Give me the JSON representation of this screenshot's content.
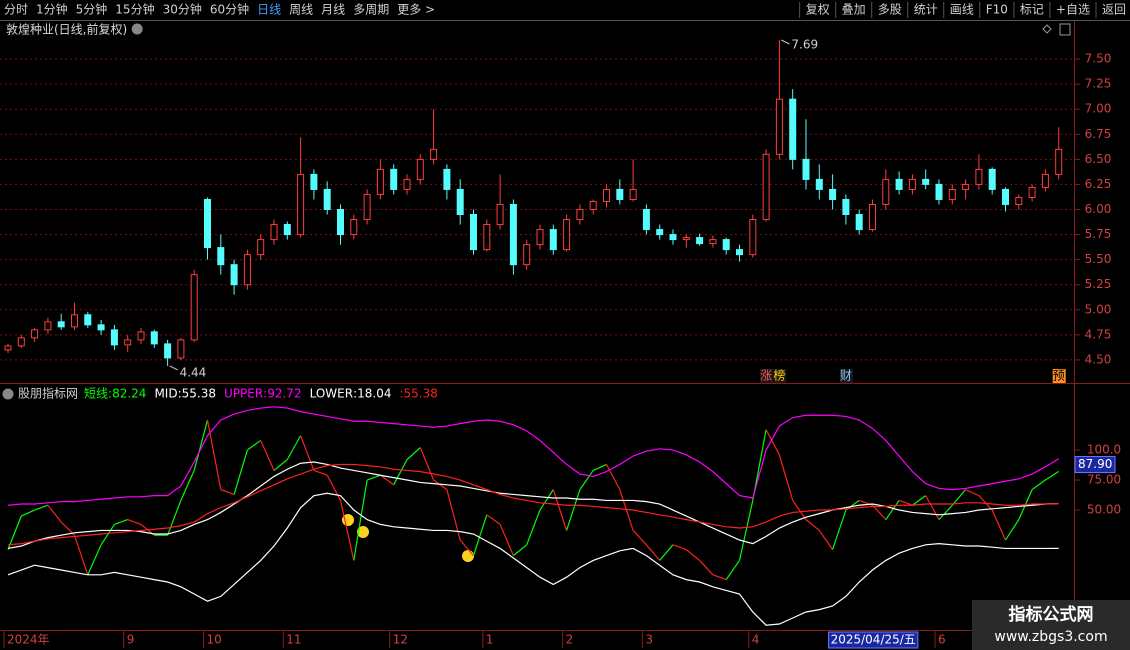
{
  "toolbar": {
    "periods": [
      "分时",
      "1分钟",
      "5分钟",
      "15分钟",
      "30分钟",
      "60分钟",
      "日线",
      "周线",
      "月线",
      "多周期",
      "更多 >"
    ],
    "active_index": 6,
    "buttons": [
      "复权",
      "叠加",
      "多股",
      "统计",
      "画线",
      "F10",
      "标记",
      "+自选",
      "返回"
    ]
  },
  "watermark": {
    "title": "指标公式网",
    "url": "www.zbgs3.com"
  },
  "chart_data": [
    {
      "type": "candlestick",
      "title": "敦煌种业(日线,前复权)",
      "categories": [
        "2024年",
        null,
        null,
        null,
        null,
        null,
        null,
        null,
        null,
        "9",
        null,
        null,
        null,
        null,
        null,
        "10",
        null,
        null,
        null,
        null,
        null,
        "11",
        null,
        null,
        null,
        null,
        null,
        null,
        null,
        "12",
        null,
        null,
        null,
        null,
        null,
        null,
        "1",
        null,
        null,
        null,
        null,
        null,
        "2",
        null,
        null,
        null,
        null,
        null,
        "3",
        null,
        null,
        null,
        null,
        null,
        null,
        null,
        "4",
        null,
        null,
        null,
        null,
        null,
        "2025/04/25/五",
        null,
        null,
        null,
        null,
        null,
        null,
        null,
        "6",
        null,
        null,
        null,
        null,
        null,
        null,
        null,
        null,
        null
      ],
      "cursor_index": 62,
      "ohlc": [
        [
          4.6,
          4.66,
          4.57,
          4.64
        ],
        [
          4.64,
          4.75,
          4.62,
          4.72
        ],
        [
          4.72,
          4.82,
          4.68,
          4.8
        ],
        [
          4.8,
          4.92,
          4.76,
          4.88
        ],
        [
          4.88,
          4.96,
          4.8,
          4.83
        ],
        [
          4.83,
          5.07,
          4.8,
          4.95
        ],
        [
          4.95,
          4.98,
          4.82,
          4.85
        ],
        [
          4.85,
          4.9,
          4.75,
          4.8
        ],
        [
          4.8,
          4.85,
          4.6,
          4.65
        ],
        [
          4.65,
          4.75,
          4.58,
          4.7
        ],
        [
          4.7,
          4.82,
          4.66,
          4.78
        ],
        [
          4.78,
          4.8,
          4.62,
          4.66
        ],
        [
          4.66,
          4.7,
          4.44,
          4.52
        ],
        [
          4.52,
          4.72,
          4.5,
          4.7
        ],
        [
          4.7,
          5.4,
          4.68,
          5.35
        ],
        [
          6.1,
          6.12,
          5.5,
          5.62
        ],
        [
          5.62,
          5.75,
          5.35,
          5.45
        ],
        [
          5.45,
          5.5,
          5.15,
          5.25
        ],
        [
          5.25,
          5.6,
          5.2,
          5.55
        ],
        [
          5.55,
          5.75,
          5.5,
          5.7
        ],
        [
          5.7,
          5.9,
          5.65,
          5.85
        ],
        [
          5.85,
          5.88,
          5.7,
          5.75
        ],
        [
          5.75,
          6.72,
          5.72,
          6.35
        ],
        [
          6.35,
          6.4,
          6.1,
          6.2
        ],
        [
          6.2,
          6.28,
          5.95,
          6.0
        ],
        [
          6.0,
          6.05,
          5.65,
          5.75
        ],
        [
          5.75,
          5.95,
          5.7,
          5.9
        ],
        [
          5.9,
          6.2,
          5.85,
          6.15
        ],
        [
          6.15,
          6.5,
          6.1,
          6.4
        ],
        [
          6.4,
          6.45,
          6.15,
          6.2
        ],
        [
          6.2,
          6.35,
          6.15,
          6.3
        ],
        [
          6.3,
          6.55,
          6.25,
          6.5
        ],
        [
          6.5,
          7.0,
          6.45,
          6.6
        ],
        [
          6.4,
          6.45,
          6.1,
          6.2
        ],
        [
          6.2,
          6.3,
          5.85,
          5.95
        ],
        [
          5.95,
          6.0,
          5.55,
          5.6
        ],
        [
          5.6,
          5.9,
          5.58,
          5.85
        ],
        [
          5.85,
          6.35,
          5.8,
          6.05
        ],
        [
          6.05,
          6.1,
          5.35,
          5.45
        ],
        [
          5.45,
          5.7,
          5.4,
          5.65
        ],
        [
          5.65,
          5.85,
          5.6,
          5.8
        ],
        [
          5.8,
          5.85,
          5.55,
          5.6
        ],
        [
          5.6,
          5.95,
          5.58,
          5.9
        ],
        [
          5.9,
          6.05,
          5.85,
          6.0
        ],
        [
          6.0,
          6.1,
          5.95,
          6.08
        ],
        [
          6.08,
          6.25,
          6.02,
          6.2
        ],
        [
          6.2,
          6.3,
          6.05,
          6.1
        ],
        [
          6.1,
          6.5,
          6.08,
          6.2
        ],
        [
          6.0,
          6.05,
          5.75,
          5.8
        ],
        [
          5.8,
          5.85,
          5.7,
          5.75
        ],
        [
          5.75,
          5.8,
          5.65,
          5.7
        ],
        [
          5.7,
          5.75,
          5.62,
          5.72
        ],
        [
          5.72,
          5.76,
          5.64,
          5.66
        ],
        [
          5.66,
          5.74,
          5.62,
          5.7
        ],
        [
          5.7,
          5.72,
          5.55,
          5.6
        ],
        [
          5.6,
          5.65,
          5.48,
          5.55
        ],
        [
          5.55,
          5.95,
          5.52,
          5.9
        ],
        [
          5.9,
          6.6,
          5.88,
          6.55
        ],
        [
          6.55,
          7.69,
          6.5,
          7.1
        ],
        [
          7.1,
          7.2,
          6.4,
          6.5
        ],
        [
          6.5,
          6.9,
          6.2,
          6.3
        ],
        [
          6.3,
          6.45,
          6.1,
          6.2
        ],
        [
          6.2,
          6.35,
          6.0,
          6.1
        ],
        [
          6.1,
          6.15,
          5.85,
          5.95
        ],
        [
          5.95,
          6.0,
          5.75,
          5.8
        ],
        [
          5.8,
          6.1,
          5.78,
          6.05
        ],
        [
          6.05,
          6.4,
          6.0,
          6.3
        ],
        [
          6.3,
          6.38,
          6.15,
          6.2
        ],
        [
          6.2,
          6.35,
          6.15,
          6.3
        ],
        [
          6.3,
          6.4,
          6.2,
          6.25
        ],
        [
          6.25,
          6.3,
          6.05,
          6.1
        ],
        [
          6.1,
          6.25,
          6.05,
          6.2
        ],
        [
          6.2,
          6.3,
          6.1,
          6.25
        ],
        [
          6.25,
          6.55,
          6.2,
          6.4
        ],
        [
          6.4,
          6.42,
          6.15,
          6.2
        ],
        [
          6.2,
          6.22,
          5.98,
          6.05
        ],
        [
          6.05,
          6.15,
          6.0,
          6.12
        ],
        [
          6.12,
          6.25,
          6.08,
          6.22
        ],
        [
          6.22,
          6.4,
          6.18,
          6.35
        ],
        [
          6.35,
          6.82,
          6.3,
          6.6
        ]
      ],
      "up_color": "#ff3c3c",
      "down_color": "#54fcfc",
      "ylim": [
        4.27,
        7.71
      ],
      "yticks": [
        {
          "value": 4.5,
          "label": "4.50"
        },
        4.75,
        {
          "value": 5,
          "label": "5.00"
        },
        5.25,
        {
          "value": 5.5,
          "label": "5.50"
        },
        5.75,
        {
          "value": 6,
          "label": "6.00"
        },
        6.25,
        {
          "value": 6.5,
          "label": "6.50"
        },
        6.75,
        {
          "value": 7,
          "label": "7.00"
        },
        7.25,
        {
          "value": 7.5,
          "label": "7.50"
        }
      ],
      "grid": true,
      "events": [
        {
          "label": "涨",
          "candle": 57,
          "color": "#ff5050"
        },
        {
          "label": "榜",
          "candle": 58,
          "color": "#ffcc00"
        },
        {
          "label": "财",
          "candle": 63,
          "color": "#80c8ff"
        },
        {
          "label": "预",
          "candle": 79,
          "color": "#ff9020"
        }
      ]
    },
    {
      "type": "line",
      "title": "股朋指标网",
      "ylim": [
        -50,
        141.7
      ],
      "yticks": [
        {
          "value": 50,
          "label": "50.00"
        },
        {
          "value": 75,
          "label": "75.00"
        },
        {
          "value": 100,
          "label": "100.0"
        }
      ],
      "current_value": {
        "value": 87.9,
        "label": "87.90"
      },
      "series": [
        {
          "name": "短线",
          "up_color": "#00ff00",
          "down_color": "#ff2020",
          "values": [
            17,
            45,
            50,
            54,
            40,
            29,
            -4,
            21,
            38,
            42,
            38,
            29,
            29,
            58,
            83,
            125,
            67,
            63,
            100,
            108,
            83,
            92,
            112,
            83,
            79,
            58,
            8,
            75,
            79,
            71,
            92,
            102,
            75,
            67,
            25,
            12,
            46,
            38,
            12,
            21,
            50,
            67,
            33,
            67,
            83,
            88,
            67,
            33,
            21,
            8,
            21,
            17,
            8,
            -4,
            -8,
            8,
            58,
            117,
            96,
            58,
            42,
            33,
            17,
            50,
            58,
            54,
            42,
            58,
            54,
            62,
            42,
            54,
            67,
            62,
            50,
            25,
            42,
            67,
            75,
            82.24
          ]
        },
        {
          "name": "MID",
          "color": "#ffffff",
          "values": [
            18,
            20,
            24,
            27,
            29,
            31,
            32,
            33,
            33,
            33,
            32,
            30,
            30,
            33,
            38,
            42,
            48,
            55,
            62,
            70,
            78,
            84,
            89,
            90,
            88,
            85,
            83,
            81,
            79,
            77,
            75,
            73,
            72,
            71,
            70,
            68,
            66,
            64,
            63,
            62,
            61,
            60,
            60,
            59,
            59,
            58,
            58,
            58,
            57,
            55,
            50,
            45,
            40,
            35,
            30,
            25,
            22,
            28,
            35,
            40,
            44,
            47,
            50,
            52,
            54,
            55,
            53,
            50,
            48,
            47,
            46,
            47,
            48,
            50,
            51,
            52,
            53,
            54,
            55,
            55.38
          ]
        },
        {
          "name": "UPPER",
          "color": "#ff00ff",
          "values": [
            54,
            55,
            55,
            56,
            57,
            57,
            58,
            59,
            60,
            61,
            61,
            62,
            62,
            70,
            90,
            112,
            125,
            130,
            133,
            135,
            136,
            135,
            132,
            130,
            128,
            126,
            124,
            124,
            123,
            122,
            121,
            120,
            119,
            120,
            122,
            124,
            125,
            124,
            121,
            116,
            108,
            98,
            88,
            80,
            78,
            82,
            88,
            95,
            99,
            101,
            100,
            96,
            90,
            82,
            72,
            62,
            60,
            100,
            120,
            127,
            129,
            129,
            129,
            128,
            125,
            118,
            108,
            95,
            82,
            72,
            68,
            67,
            68,
            70,
            72,
            74,
            76,
            80,
            86,
            92.72
          ]
        },
        {
          "name": "LOWER",
          "color": "#ffffff",
          "values": [
            -4,
            0,
            4,
            2,
            0,
            -2,
            -4,
            -4,
            -2,
            -4,
            -6,
            -8,
            -10,
            -14,
            -20,
            -26,
            -22,
            -12,
            -2,
            8,
            20,
            35,
            52,
            62,
            64,
            62,
            50,
            42,
            38,
            36,
            35,
            34,
            33,
            33,
            32,
            30,
            24,
            18,
            10,
            2,
            -6,
            -12,
            -6,
            2,
            8,
            12,
            16,
            18,
            12,
            4,
            -4,
            -8,
            -10,
            -14,
            -17,
            -20,
            -35,
            -46,
            -45,
            -40,
            -35,
            -33,
            -30,
            -22,
            -10,
            0,
            8,
            14,
            18,
            21,
            22,
            21,
            20,
            20,
            19,
            18,
            18,
            18,
            18,
            18.04
          ]
        },
        {
          "color": "#ff2020",
          "values": [
            21,
            22,
            24,
            26,
            27,
            28,
            29,
            30,
            31,
            32,
            33,
            34,
            35,
            37,
            40,
            47,
            52,
            56,
            61,
            66,
            71,
            76,
            80,
            84,
            87,
            88,
            88,
            87,
            86,
            84,
            83,
            82,
            80,
            78,
            75,
            71,
            67,
            63,
            60,
            58,
            56,
            55,
            54,
            54,
            53,
            52,
            51,
            50,
            48,
            46,
            44,
            42,
            40,
            38,
            36,
            35,
            36,
            40,
            45,
            48,
            49,
            50,
            50,
            51,
            52,
            53,
            53,
            54,
            54,
            55,
            55,
            55,
            56,
            56,
            55,
            54,
            54,
            55,
            55,
            55.38
          ]
        }
      ]
    }
  ]
}
